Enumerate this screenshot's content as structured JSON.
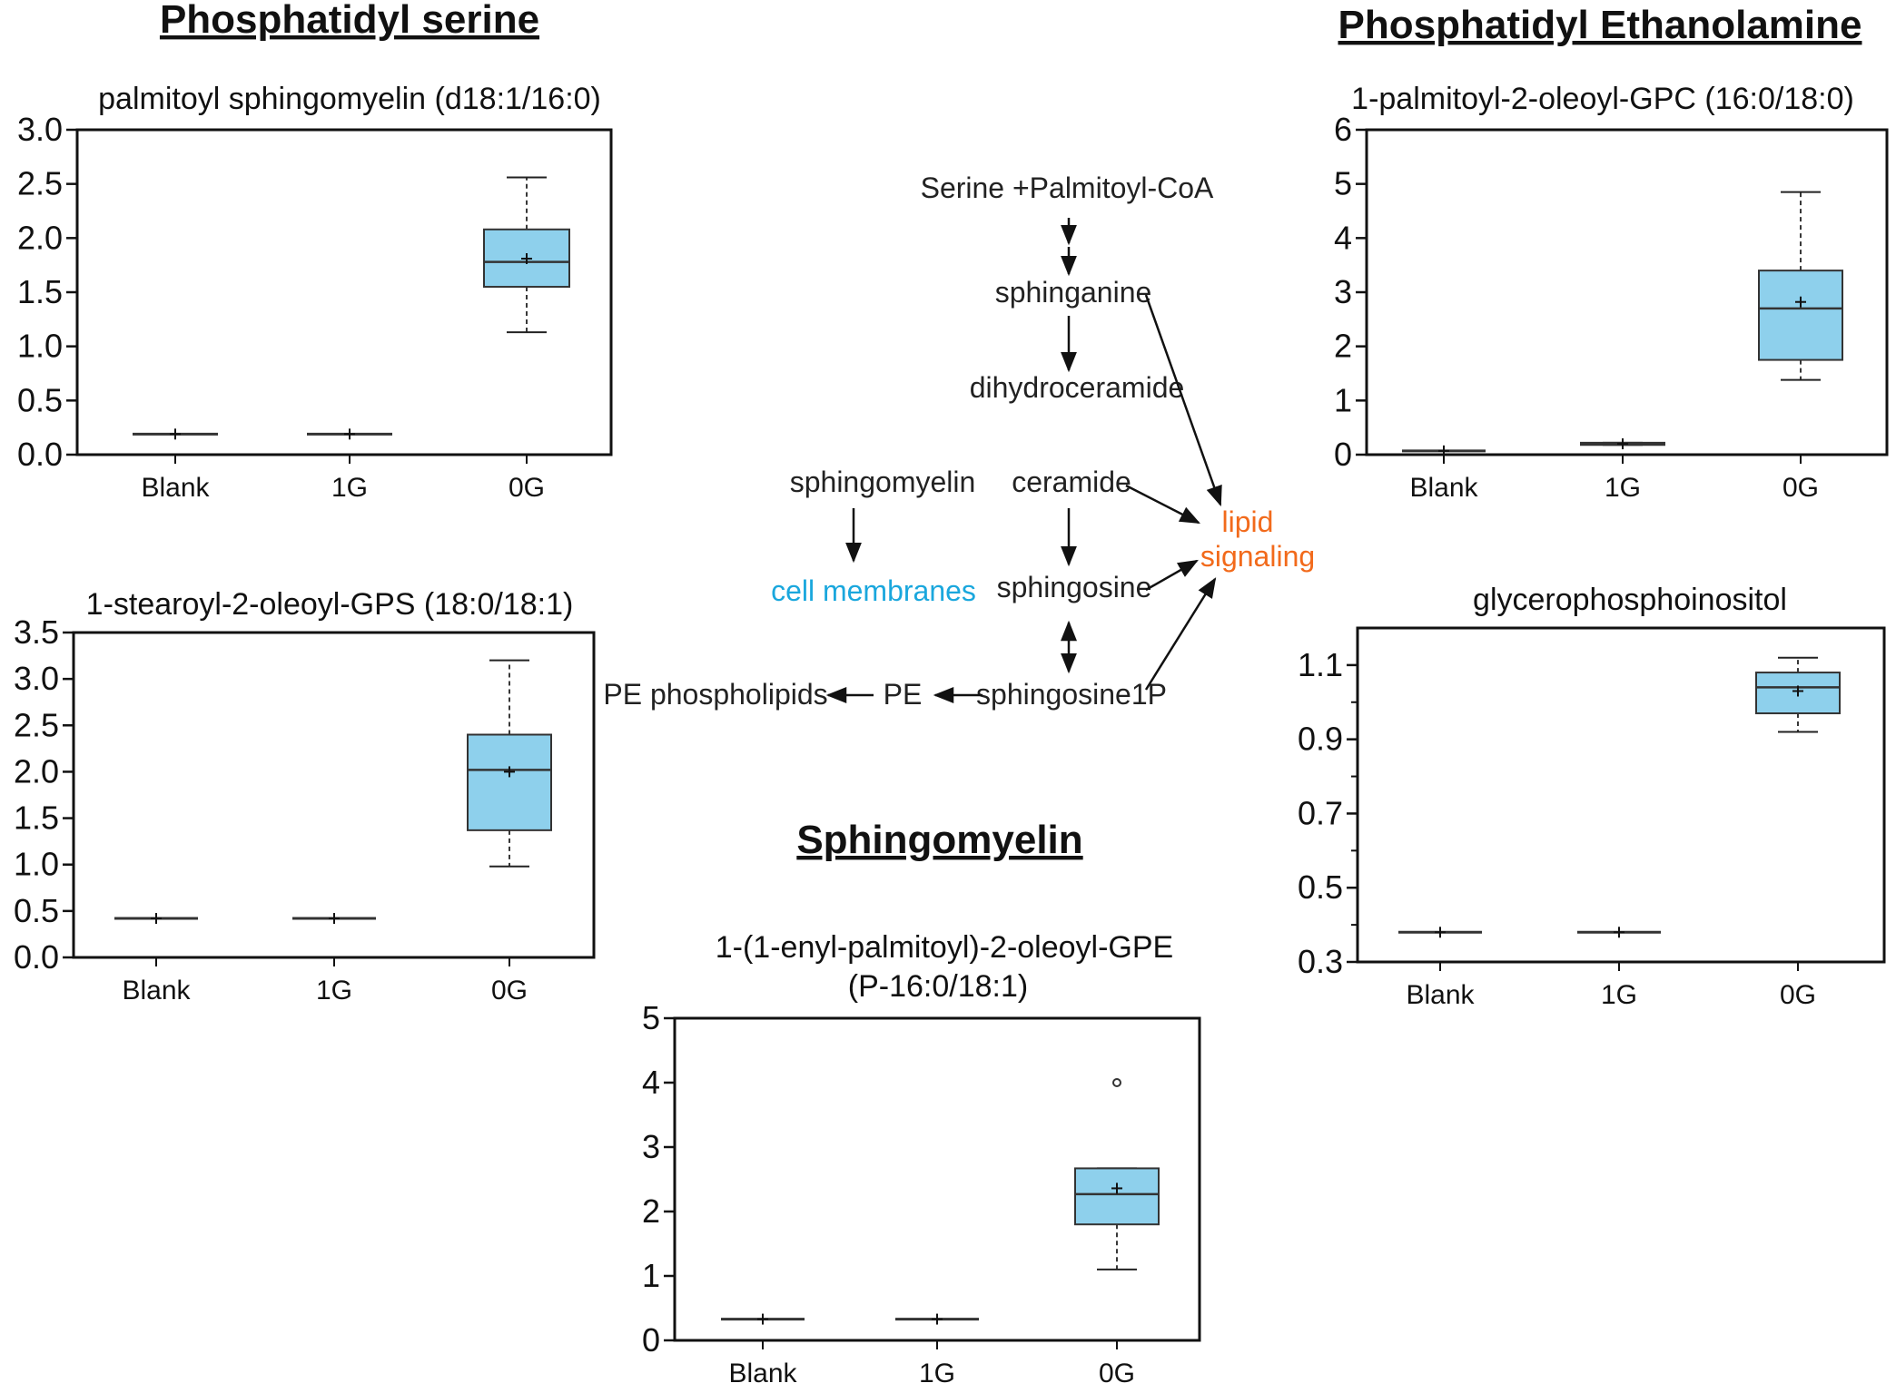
{
  "section_titles": {
    "phosphatidyl_serine": "Phosphatidyl serine",
    "phosphatidyl_ethanolamine": "Phosphatidyl Ethanolamine",
    "sphingomyelin": "Sphingomyelin"
  },
  "pathway": {
    "nodes": {
      "serine_palmitoyl_coa": "Serine +Palmitoyl-CoA",
      "sphinganine": "sphinganine",
      "dihydroceramide": "dihydroceramide",
      "sphingomyelin": "sphingomyelin",
      "ceramide": "ceramide",
      "cell_membranes": "cell membranes",
      "sphingosine": "sphingosine",
      "lipid": "lipid",
      "signaling": "signaling",
      "pe_phospholipids": "PE phospholipids",
      "pe": "PE",
      "sphingosine1p": "sphingosine1P"
    },
    "colors": {
      "cell_membranes": "#1aa7dd",
      "lipid_signaling": "#f26a1b"
    }
  },
  "box_fill_color": "#8ed0ec",
  "chart_data": [
    {
      "id": "c1",
      "type": "box",
      "title": "palmitoyl sphingomyelin (d18:1/16:0)",
      "categories": [
        "Blank",
        "1G",
        "0G"
      ],
      "ylim": [
        0,
        3.0
      ],
      "yticks": [
        0.0,
        0.5,
        1.0,
        1.5,
        2.0,
        2.5,
        3.0
      ],
      "ytick_labels": [
        "0.0",
        "0.5",
        "1.0",
        "1.5",
        "2.0",
        "2.5",
        "3.0"
      ],
      "boxes": [
        {
          "category": "Blank",
          "min": 0.19,
          "q1": 0.19,
          "median": 0.19,
          "q3": 0.19,
          "max": 0.19,
          "mean": 0.19,
          "outliers": []
        },
        {
          "category": "1G",
          "min": 0.19,
          "q1": 0.19,
          "median": 0.19,
          "q3": 0.19,
          "max": 0.19,
          "mean": 0.19,
          "outliers": []
        },
        {
          "category": "0G",
          "min": 1.13,
          "q1": 1.55,
          "median": 1.78,
          "q3": 2.08,
          "max": 2.56,
          "mean": 1.81,
          "outliers": []
        }
      ]
    },
    {
      "id": "c2",
      "type": "box",
      "title": "1-stearoyl-2-oleoyl-GPS (18:0/18:1)",
      "categories": [
        "Blank",
        "1G",
        "0G"
      ],
      "ylim": [
        0,
        3.5
      ],
      "yticks": [
        0.0,
        0.5,
        1.0,
        1.5,
        2.0,
        2.5,
        3.0,
        3.5
      ],
      "ytick_labels": [
        "0.0",
        "0.5",
        "1.0",
        "1.5",
        "2.0",
        "2.5",
        "3.0",
        "3.5"
      ],
      "boxes": [
        {
          "category": "Blank",
          "min": 0.42,
          "q1": 0.42,
          "median": 0.42,
          "q3": 0.42,
          "max": 0.42,
          "mean": 0.42,
          "outliers": []
        },
        {
          "category": "1G",
          "min": 0.42,
          "q1": 0.42,
          "median": 0.42,
          "q3": 0.42,
          "max": 0.42,
          "mean": 0.42,
          "outliers": []
        },
        {
          "category": "0G",
          "min": 0.98,
          "q1": 1.37,
          "median": 2.02,
          "q3": 2.4,
          "max": 3.2,
          "mean": 2.0,
          "outliers": []
        }
      ]
    },
    {
      "id": "c3",
      "type": "box",
      "title": "1-palmitoyl-2-oleoyl-GPC (16:0/18:0)",
      "categories": [
        "Blank",
        "1G",
        "0G"
      ],
      "ylim": [
        0,
        6
      ],
      "yticks": [
        0,
        1,
        2,
        3,
        4,
        5,
        6
      ],
      "ytick_labels": [
        "0",
        "1",
        "2",
        "3",
        "4",
        "5",
        "6"
      ],
      "boxes": [
        {
          "category": "Blank",
          "min": 0.07,
          "q1": 0.07,
          "median": 0.07,
          "q3": 0.07,
          "max": 0.07,
          "mean": 0.07,
          "outliers": []
        },
        {
          "category": "1G",
          "min": 0.18,
          "q1": 0.18,
          "median": 0.2,
          "q3": 0.22,
          "max": 0.22,
          "mean": 0.2,
          "outliers": []
        },
        {
          "category": "0G",
          "min": 1.38,
          "q1": 1.75,
          "median": 2.7,
          "q3": 3.4,
          "max": 4.85,
          "mean": 2.82,
          "outliers": []
        }
      ]
    },
    {
      "id": "c4",
      "type": "box",
      "title": "glycerophosphoinositol",
      "categories": [
        "Blank",
        "1G",
        "0G"
      ],
      "ylim": [
        0.3,
        1.2
      ],
      "yticks": [
        0.3,
        0.5,
        0.7,
        0.9,
        1.1
      ],
      "ytick_labels": [
        "0.3",
        "0.5",
        "0.7",
        "0.9",
        "1.1"
      ],
      "minor_yticks": [
        0.4,
        0.6,
        0.8,
        1.0
      ],
      "boxes": [
        {
          "category": "Blank",
          "min": 0.38,
          "q1": 0.38,
          "median": 0.38,
          "q3": 0.38,
          "max": 0.38,
          "mean": 0.38,
          "outliers": []
        },
        {
          "category": "1G",
          "min": 0.38,
          "q1": 0.38,
          "median": 0.38,
          "q3": 0.38,
          "max": 0.38,
          "mean": 0.38,
          "outliers": []
        },
        {
          "category": "0G",
          "min": 0.92,
          "q1": 0.97,
          "median": 1.04,
          "q3": 1.08,
          "max": 1.12,
          "mean": 1.03,
          "outliers": []
        }
      ]
    },
    {
      "id": "c5",
      "type": "box",
      "title": "1-(1-enyl-palmitoyl)-2-oleoyl-GPE",
      "subtitle": "(P-16:0/18:1)",
      "categories": [
        "Blank",
        "1G",
        "0G"
      ],
      "ylim": [
        0,
        5
      ],
      "yticks": [
        0,
        1,
        2,
        3,
        4,
        5
      ],
      "ytick_labels": [
        "0",
        "1",
        "2",
        "3",
        "4",
        "5"
      ],
      "boxes": [
        {
          "category": "Blank",
          "min": 0.33,
          "q1": 0.33,
          "median": 0.33,
          "q3": 0.33,
          "max": 0.33,
          "mean": 0.33,
          "outliers": []
        },
        {
          "category": "1G",
          "min": 0.33,
          "q1": 0.33,
          "median": 0.33,
          "q3": 0.33,
          "max": 0.33,
          "mean": 0.33,
          "outliers": []
        },
        {
          "category": "0G",
          "min": 1.1,
          "q1": 1.8,
          "median": 2.27,
          "q3": 2.67,
          "max": 2.67,
          "mean": 2.36,
          "outliers": [
            4.0
          ]
        }
      ]
    }
  ]
}
